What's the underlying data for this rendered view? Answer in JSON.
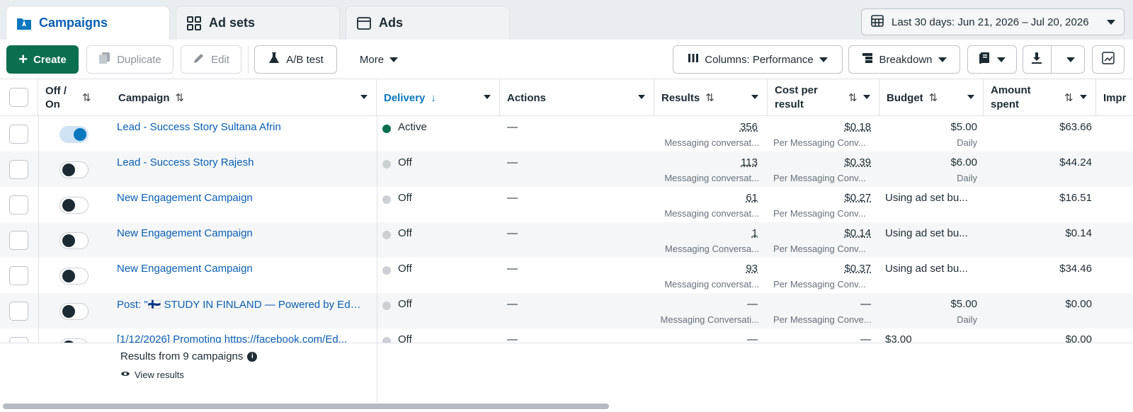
{
  "tabs": [
    {
      "label": "Campaigns",
      "icon": "campaigns-folder-icon"
    },
    {
      "label": "Ad sets",
      "icon": "grid-icon"
    },
    {
      "label": "Ads",
      "icon": "ad-window-icon"
    }
  ],
  "date_range": "Last 30 days: Jun 21, 2026 – Jul 20, 2026",
  "toolbar": {
    "create": "Create",
    "duplicate": "Duplicate",
    "edit": "Edit",
    "ab_test": "A/B test",
    "more": "More",
    "columns": "Columns: Performance",
    "breakdown": "Breakdown"
  },
  "columns": {
    "off_on": "Off / On",
    "campaign": "Campaign",
    "delivery": "Delivery",
    "actions": "Actions",
    "results": "Results",
    "cost_per_result": "Cost per result",
    "budget": "Budget",
    "amount_spent": "Amount spent",
    "impressions": "Impr"
  },
  "rows": [
    {
      "on": true,
      "campaign": "Lead - Success Story Sultana Afrin",
      "delivery": "Active",
      "actions": "—",
      "results": "356",
      "results_sub": "Messaging conversat...",
      "cost": "$0.18",
      "cost_sub": "Per Messaging Conv...",
      "budget": "$5.00",
      "budget_sub": "Daily",
      "spent": "$63.66"
    },
    {
      "on": false,
      "campaign": "Lead - Success Story Rajesh",
      "delivery": "Off",
      "actions": "—",
      "results": "113",
      "results_sub": "Messaging conversat...",
      "cost": "$0.39",
      "cost_sub": "Per Messaging Conv...",
      "budget": "$6.00",
      "budget_sub": "Daily",
      "spent": "$44.24"
    },
    {
      "on": false,
      "campaign": "New Engagement Campaign",
      "delivery": "Off",
      "actions": "—",
      "results": "61",
      "results_sub": "Messaging conversat...",
      "cost": "$0.27",
      "cost_sub": "Per Messaging Conv...",
      "budget": "Using ad set bu...",
      "budget_sub": "",
      "spent": "$16.51"
    },
    {
      "on": false,
      "campaign": "New Engagement Campaign",
      "delivery": "Off",
      "actions": "—",
      "results": "1",
      "results_sub": "Messaging Conversa...",
      "cost": "$0.14",
      "cost_sub": "Per Messaging Conv...",
      "budget": "Using ad set bu...",
      "budget_sub": "",
      "spent": "$0.14"
    },
    {
      "on": false,
      "campaign": "New Engagement Campaign",
      "delivery": "Off",
      "actions": "—",
      "results": "93",
      "results_sub": "Messaging conversat...",
      "cost": "$0.37",
      "cost_sub": "Per Messaging Conv...",
      "budget": "Using ad set bu...",
      "budget_sub": "",
      "spent": "$34.46"
    },
    {
      "on": false,
      "campaign": "Post: \"🇫🇮 STUDY IN FINLAND — Powered by Edu...",
      "delivery": "Off",
      "actions": "—",
      "results": "—",
      "results_sub": "Messaging Conversati...",
      "cost": "—",
      "cost_sub": "Per Messaging Conve...",
      "budget": "$5.00",
      "budget_sub": "Daily",
      "spent": "$0.00"
    },
    {
      "on": false,
      "campaign": "[1/12/2026] Promoting https://facebook.com/Ed...",
      "delivery": "Off",
      "actions": "—",
      "results": "—",
      "results_sub": "",
      "cost": "—",
      "cost_sub": "",
      "budget": "$3.00",
      "budget_sub": "",
      "spent": "$0.00"
    }
  ],
  "footer": {
    "summary": "Results from 9 campaigns",
    "view_results": "View results"
  },
  "colors": {
    "brand_blue": "#0a5fb4",
    "primary_green": "#0b6e4f",
    "active_dot": "#0b6e4f"
  }
}
